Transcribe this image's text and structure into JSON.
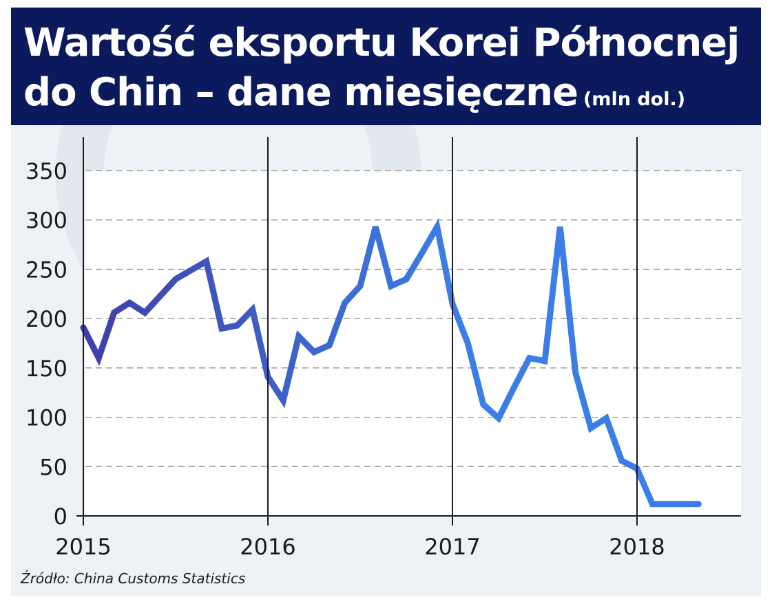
{
  "header": {
    "title_line1": "Wartość eksportu Korei Północnej",
    "title_line2": "do Chin – dane miesięczne",
    "unit": "(mln dol.)"
  },
  "source": "Źródło: China Customs Statistics",
  "colors": {
    "header_bg": "#0b1a5c",
    "frame_bg": "#eef1f5",
    "plot_bg": "#ffffff",
    "line_start": "#3f3fa8",
    "line_end": "#3b7fe6",
    "axis": "#1a1a1a",
    "grid": "#8a8a8a"
  },
  "chart_data": {
    "type": "line",
    "title": "Wartość eksportu Korei Północnej do Chin – dane miesięczne",
    "ylabel": "",
    "xlabel": "",
    "unit": "mln dol.",
    "ylim": [
      0,
      350
    ],
    "yticks": [
      0,
      50,
      100,
      150,
      200,
      250,
      300,
      350
    ],
    "xlim": [
      "2015-01",
      "2018-12"
    ],
    "xticks": [
      "2015",
      "2016",
      "2017",
      "2018"
    ],
    "grid": "horizontal dashed",
    "series": [
      {
        "x": [
          "2015-01",
          "2015-02",
          "2015-03",
          "2015-04",
          "2015-05",
          "2015-06",
          "2015-07",
          "2015-08",
          "2015-09",
          "2015-10",
          "2015-11",
          "2015-12",
          "2016-01",
          "2016-02",
          "2016-03",
          "2016-04",
          "2016-05",
          "2016-06",
          "2016-07",
          "2016-08",
          "2016-09",
          "2016-10",
          "2016-11",
          "2016-12",
          "2017-01",
          "2017-02",
          "2017-03",
          "2017-04",
          "2017-05",
          "2017-06",
          "2017-07",
          "2017-08",
          "2017-09",
          "2017-10",
          "2017-11",
          "2017-12",
          "2018-01",
          "2018-02",
          "2018-03",
          "2018-04",
          "2018-05"
        ],
        "values": [
          191,
          160,
          206,
          216,
          206,
          223,
          240,
          249,
          258,
          190,
          193,
          209,
          141,
          117,
          182,
          166,
          173,
          216,
          233,
          293,
          233,
          240,
          266,
          293,
          215,
          175,
          113,
          99,
          130,
          160,
          157,
          293,
          145,
          89,
          99,
          56,
          48,
          12,
          12,
          12,
          12
        ]
      }
    ]
  }
}
